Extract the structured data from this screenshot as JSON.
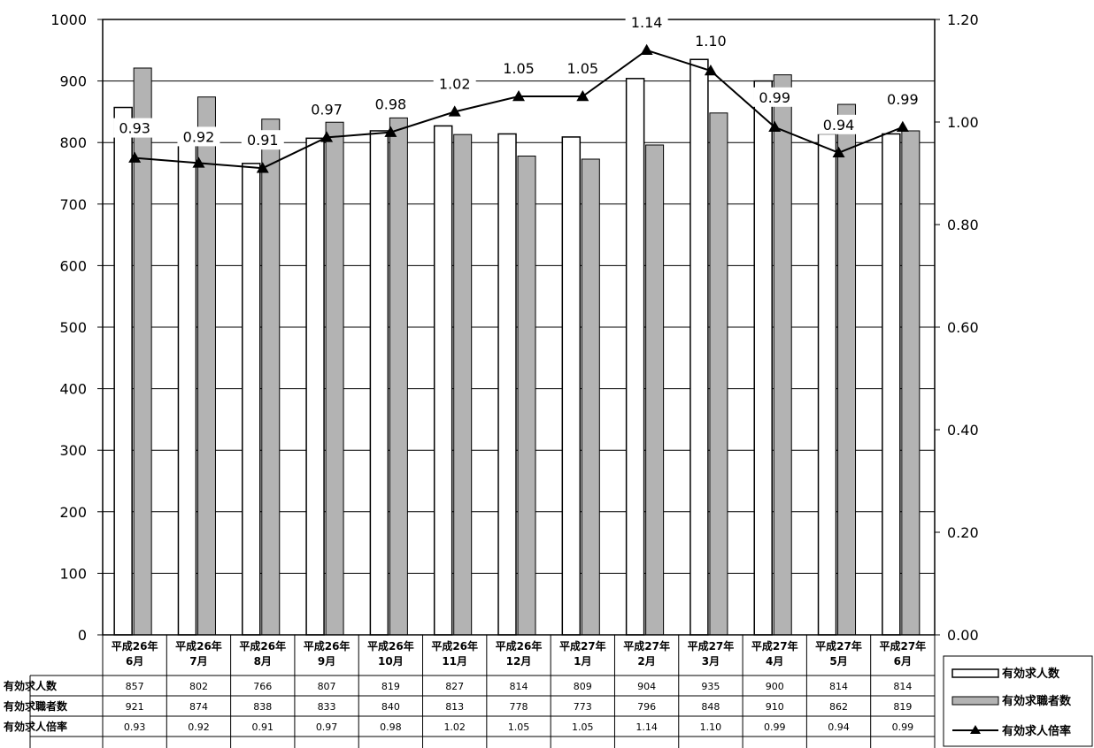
{
  "chart_data": {
    "type": "bar",
    "categories": [
      [
        "平成26年",
        "6月"
      ],
      [
        "平成26年",
        "7月"
      ],
      [
        "平成26年",
        "8月"
      ],
      [
        "平成26年",
        "9月"
      ],
      [
        "平成26年",
        "10月"
      ],
      [
        "平成26年",
        "11月"
      ],
      [
        "平成26年",
        "12月"
      ],
      [
        "平成27年",
        "1月"
      ],
      [
        "平成27年",
        "2月"
      ],
      [
        "平成27年",
        "3月"
      ],
      [
        "平成27年",
        "4月"
      ],
      [
        "平成27年",
        "5月"
      ],
      [
        "平成27年",
        "6月"
      ]
    ],
    "y_left": {
      "min": 0,
      "max": 1000,
      "ticks": [
        "0",
        "100",
        "200",
        "300",
        "400",
        "500",
        "600",
        "700",
        "800",
        "900",
        "1000"
      ]
    },
    "y_right": {
      "min": 0,
      "max": 1.2,
      "ticks": [
        "0.00",
        "0.20",
        "0.40",
        "0.60",
        "0.80",
        "1.00",
        "1.20"
      ]
    },
    "grid": true,
    "legend_position": "bottom-right",
    "series": [
      {
        "name": "有効求人数",
        "kind": "bar",
        "axis": "left",
        "color": "#ffffff",
        "values": [
          857,
          802,
          766,
          807,
          819,
          827,
          814,
          809,
          904,
          935,
          900,
          814,
          814
        ],
        "display": [
          "857",
          "802",
          "766",
          "807",
          "819",
          "827",
          "814",
          "809",
          "904",
          "935",
          "900",
          "814",
          "814"
        ]
      },
      {
        "name": "有効求職者数",
        "kind": "bar",
        "axis": "left",
        "color": "#b3b3b3",
        "values": [
          921,
          874,
          838,
          833,
          840,
          813,
          778,
          773,
          796,
          848,
          910,
          862,
          819
        ],
        "display": [
          "921",
          "874",
          "838",
          "833",
          "840",
          "813",
          "778",
          "773",
          "796",
          "848",
          "910",
          "862",
          "819"
        ]
      },
      {
        "name": "有効求人倍率",
        "kind": "line",
        "axis": "right",
        "color": "#000000",
        "values": [
          0.93,
          0.92,
          0.91,
          0.97,
          0.98,
          1.02,
          1.05,
          1.05,
          1.14,
          1.1,
          0.99,
          0.94,
          0.99
        ],
        "display": [
          "0.93",
          "0.92",
          "0.91",
          "0.97",
          "0.98",
          "1.02",
          "1.05",
          "1.05",
          "1.14",
          "1.10",
          "0.99",
          "0.94",
          "0.99"
        ]
      }
    ]
  }
}
